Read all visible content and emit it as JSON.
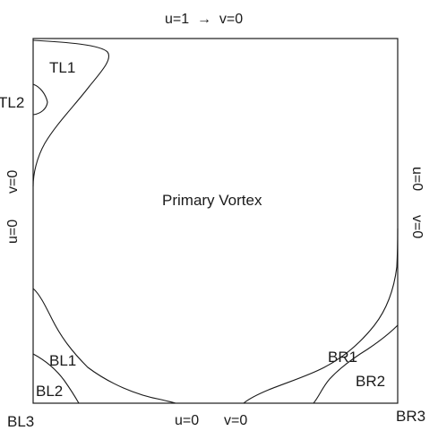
{
  "diagram": {
    "boundary_conditions": {
      "top": "u=1  →  v=0",
      "bottom_u": "u=0",
      "bottom_v": "v=0",
      "left_u": "u=0",
      "left_v": "v=0",
      "right_u": "u=0",
      "right_v": "v=0"
    },
    "regions": {
      "primary": "Primary Vortex",
      "tl1": "TL1",
      "tl2": "TL2",
      "bl1": "BL1",
      "bl2": "BL2",
      "bl3": "BL3",
      "br1": "BR1",
      "br2": "BR2",
      "br3": "BR3"
    }
  }
}
